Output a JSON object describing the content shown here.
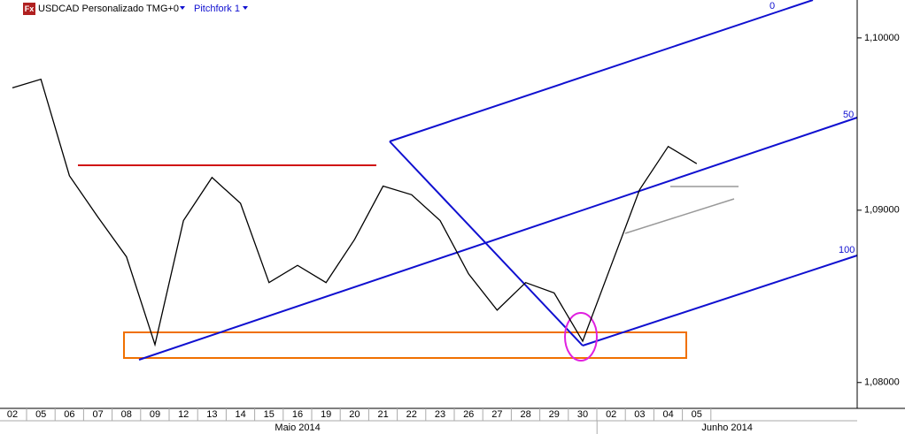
{
  "chart_data": {
    "type": "line",
    "logo": "Fx",
    "title": "USDCAD Personalizado TMG+0",
    "indicator": "Pitchfork 1",
    "pitchfork_levels": [
      0,
      50,
      100
    ],
    "categories": [
      "02",
      "05",
      "06",
      "07",
      "08",
      "09",
      "12",
      "13",
      "14",
      "15",
      "16",
      "19",
      "20",
      "21",
      "22",
      "23",
      "26",
      "27",
      "28",
      "29",
      "30",
      "02",
      "03",
      "04",
      "05"
    ],
    "months": [
      "Maio 2014",
      "Junho 2014"
    ],
    "series": [
      {
        "name": "USDCAD",
        "color": "#000000",
        "values": [
          1.0971,
          1.0976,
          1.092,
          1.0896,
          1.0873,
          1.0822,
          1.0894,
          1.0919,
          1.0904,
          1.0858,
          1.0868,
          1.0858,
          1.0883,
          1.0914,
          1.0909,
          1.0894,
          1.0863,
          1.0842,
          1.0858,
          1.0852,
          1.0824,
          1.0868,
          1.0912,
          1.0937,
          1.0927
        ]
      }
    ],
    "ylim": [
      1.0785,
      1.1022
    ],
    "yticks": [
      {
        "value": 1.08,
        "label": "1,08000"
      },
      {
        "value": 1.09,
        "label": "1,09000"
      },
      {
        "value": 1.1,
        "label": "1,10000"
      }
    ],
    "grid": false
  }
}
